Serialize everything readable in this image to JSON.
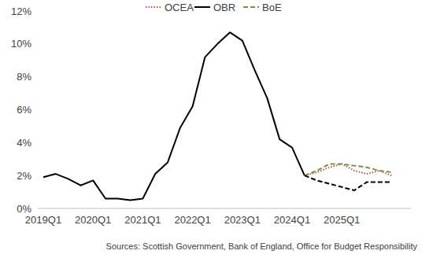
{
  "chart_data": {
    "type": "line",
    "source": "Sources: Scottish Government, Bank of England, Office for Budget Responsibility",
    "legend": "top",
    "grid": false,
    "categories": [
      "2019Q1",
      null,
      null,
      null,
      "2020Q1",
      null,
      null,
      null,
      "2021Q1",
      null,
      null,
      null,
      "2022Q1",
      null,
      null,
      null,
      "2023Q1",
      null,
      null,
      null,
      "2024Q1",
      null,
      null,
      null,
      "2025Q1",
      null,
      null,
      null,
      null
    ],
    "ylim": [
      0,
      12
    ],
    "yticks": [
      {
        "value": 0,
        "label": "0%"
      },
      {
        "value": 2,
        "label": "2%"
      },
      {
        "value": 4,
        "label": "4%"
      },
      {
        "value": 6,
        "label": "6%"
      },
      {
        "value": 8,
        "label": "8%"
      },
      {
        "value": 10,
        "label": "10%"
      },
      {
        "value": 12,
        "label": "12%"
      }
    ],
    "series": [
      {
        "name": "OCEA",
        "color": "#c0504d",
        "line_style": "dotted",
        "values": [
          null,
          null,
          null,
          null,
          null,
          null,
          null,
          null,
          null,
          null,
          null,
          null,
          null,
          null,
          null,
          null,
          null,
          null,
          null,
          null,
          null,
          2.0,
          2.2,
          2.5,
          2.7,
          2.3,
          2.1,
          2.3,
          2.0
        ]
      },
      {
        "name": "OBR",
        "color": "#000000",
        "line_style": "solid",
        "values": [
          1.9,
          2.1,
          1.8,
          1.4,
          1.7,
          0.6,
          0.6,
          0.5,
          0.6,
          2.1,
          2.8,
          4.9,
          6.2,
          9.2,
          10.0,
          10.7,
          10.2,
          8.4,
          6.7,
          4.2,
          3.7,
          2.0,
          null,
          null,
          null,
          null,
          null,
          null,
          null
        ]
      },
      {
        "name": "BoE",
        "color": "#77933c",
        "line_style": "dashed",
        "values": [
          null,
          null,
          null,
          null,
          null,
          null,
          null,
          null,
          null,
          null,
          null,
          null,
          null,
          null,
          null,
          null,
          null,
          null,
          null,
          null,
          null,
          2.0,
          2.3,
          2.7,
          2.7,
          2.6,
          2.5,
          2.3,
          2.2
        ]
      },
      {
        "name": "OBR",
        "color": "#000000",
        "line_style": "dashed",
        "values": [
          null,
          null,
          null,
          null,
          null,
          null,
          null,
          null,
          null,
          null,
          null,
          null,
          null,
          null,
          null,
          null,
          null,
          null,
          null,
          null,
          null,
          2.0,
          1.7,
          1.5,
          1.3,
          1.1,
          1.6,
          1.6,
          1.6
        ]
      }
    ]
  }
}
